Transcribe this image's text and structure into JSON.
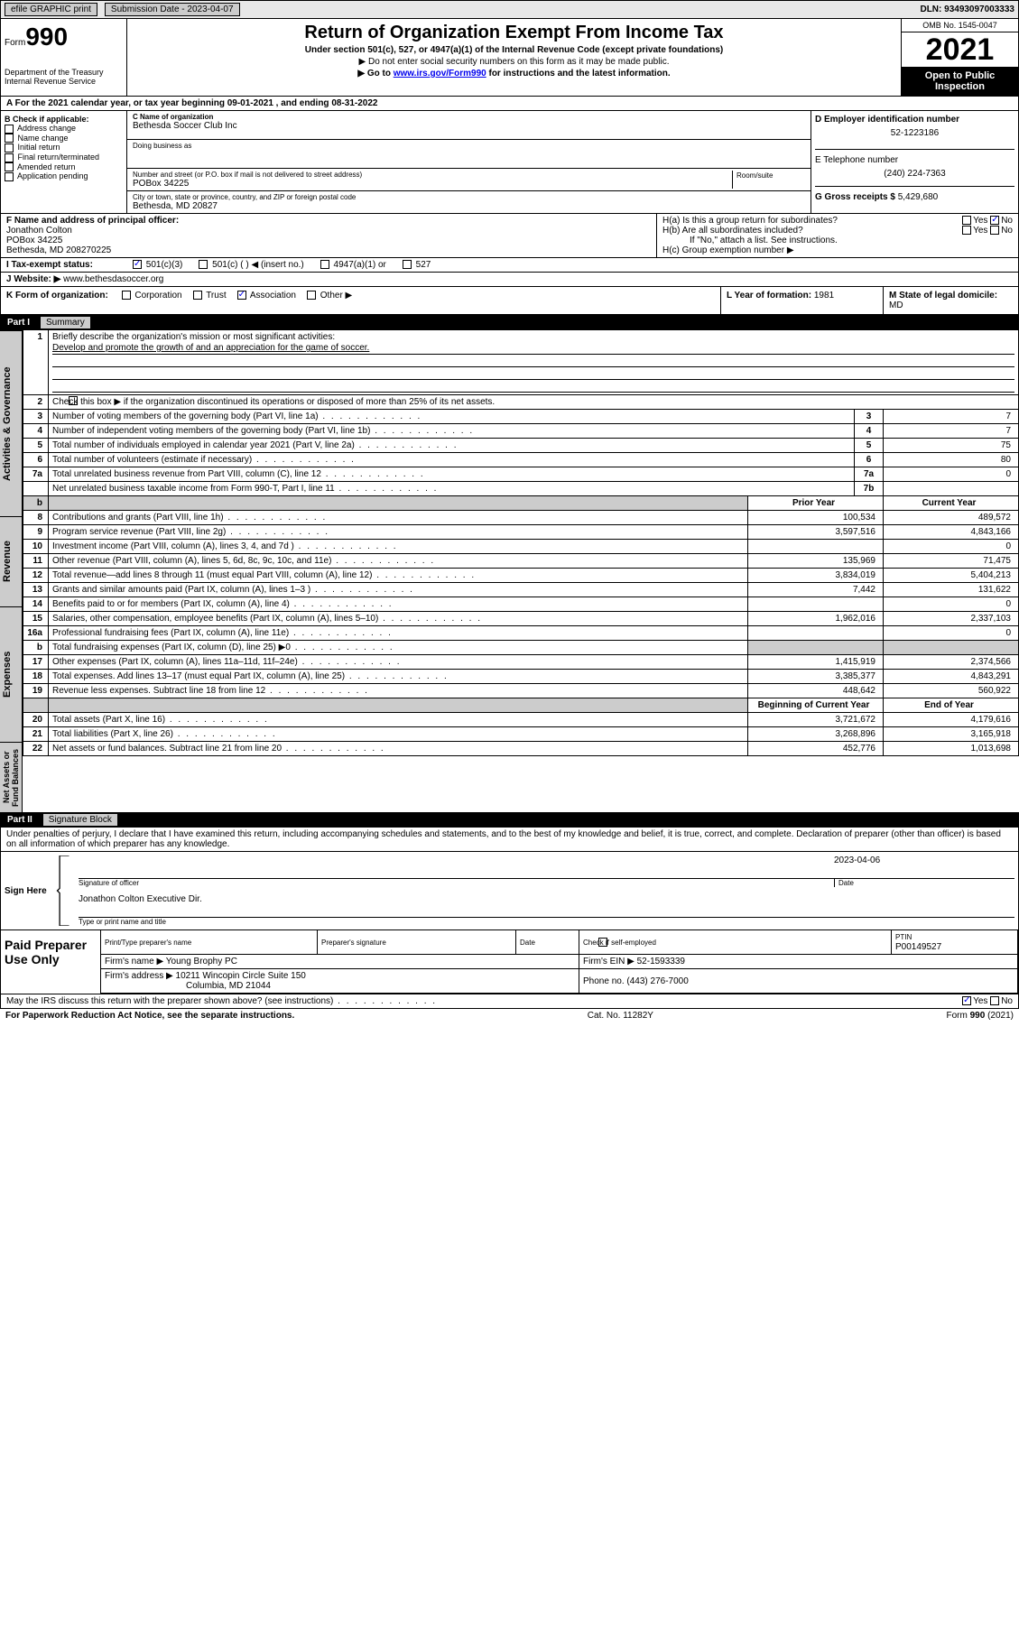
{
  "topBar": {
    "efile": "efile GRAPHIC print",
    "submissionLabel": "Submission Date - 2023-04-07",
    "dln": "DLN: 93493097003333"
  },
  "header": {
    "formPrefix": "Form",
    "formNum": "990",
    "dept": "Department of the Treasury\nInternal Revenue Service",
    "title": "Return of Organization Exempt From Income Tax",
    "sub1": "Under section 501(c), 527, or 4947(a)(1) of the Internal Revenue Code (except private foundations)",
    "sub2": "▶ Do not enter social security numbers on this form as it may be made public.",
    "sub3_prefix": "▶ Go to ",
    "sub3_link": "www.irs.gov/Form990",
    "sub3_suffix": " for instructions and the latest information.",
    "omb": "OMB No. 1545-0047",
    "year": "2021",
    "openPublic": "Open to Public Inspection"
  },
  "sectionA": {
    "text": "A For the 2021 calendar year, or tax year beginning 09-01-2021   , and ending 08-31-2022"
  },
  "sectionB": {
    "label": "B Check if applicable:",
    "items": [
      "Address change",
      "Name change",
      "Initial return",
      "Final return/terminated",
      "Amended return",
      "Application pending"
    ]
  },
  "sectionC": {
    "nameLabel": "C Name of organization",
    "name": "Bethesda Soccer Club Inc",
    "dbaLabel": "Doing business as",
    "dba": "",
    "addrLabel": "Number and street (or P.O. box if mail is not delivered to street address)",
    "roomLabel": "Room/suite",
    "addr": "POBox 34225",
    "cityLabel": "City or town, state or province, country, and ZIP or foreign postal code",
    "city": "Bethesda, MD  20827"
  },
  "sectionD": {
    "label": "D Employer identification number",
    "value": "52-1223186"
  },
  "sectionE": {
    "label": "E Telephone number",
    "value": "(240) 224-7363"
  },
  "sectionG": {
    "label": "G Gross receipts $",
    "value": "5,429,680"
  },
  "sectionF": {
    "label": "F Name and address of principal officer:",
    "name": "Jonathon Colton",
    "addr1": "POBox 34225",
    "addr2": "Bethesda, MD  208270225"
  },
  "sectionH": {
    "a": "H(a)  Is this a group return for subordinates?",
    "b": "H(b)  Are all subordinates included?",
    "bNote": "If \"No,\" attach a list. See instructions.",
    "c": "H(c)  Group exemption number ▶"
  },
  "sectionI": {
    "label": "I      Tax-exempt status:",
    "opts": [
      "501(c)(3)",
      "501(c) (  ) ◀ (insert no.)",
      "4947(a)(1) or",
      "527"
    ]
  },
  "sectionJ": {
    "label": "J    Website: ▶",
    "value": "www.bethesdasoccer.org"
  },
  "sectionK": {
    "label": "K Form of organization:",
    "opts": [
      "Corporation",
      "Trust",
      "Association",
      "Other ▶"
    ]
  },
  "sectionL": {
    "label": "L Year of formation:",
    "value": "1981"
  },
  "sectionM": {
    "label": "M State of legal domicile:",
    "value": "MD"
  },
  "partI": {
    "label": "Part I",
    "title": "Summary",
    "groups": {
      "gov": "Activities & Governance",
      "rev": "Revenue",
      "exp": "Expenses",
      "net": "Net Assets or Fund Balances"
    },
    "line1": "Briefly describe the organization's mission or most significant activities:",
    "mission": "Develop and promote the growth of and an appreciation for the game of soccer.",
    "line2": "Check this box ▶        if the organization discontinued its operations or disposed of more than 25% of its net assets.",
    "priorHdr": "Prior Year",
    "currHdr": "Current Year",
    "begHdr": "Beginning of Current Year",
    "endHdr": "End of Year",
    "rows": [
      {
        "n": "3",
        "d": "Number of voting members of the governing body (Part VI, line 1a)",
        "t": "3",
        "v": "7"
      },
      {
        "n": "4",
        "d": "Number of independent voting members of the governing body (Part VI, line 1b)",
        "t": "4",
        "v": "7"
      },
      {
        "n": "5",
        "d": "Total number of individuals employed in calendar year 2021 (Part V, line 2a)",
        "t": "5",
        "v": "75"
      },
      {
        "n": "6",
        "d": "Total number of volunteers (estimate if necessary)",
        "t": "6",
        "v": "80"
      },
      {
        "n": "7a",
        "d": "Total unrelated business revenue from Part VIII, column (C), line 12",
        "t": "7a",
        "v": "0"
      },
      {
        "n": "",
        "d": "Net unrelated business taxable income from Form 990-T, Part I, line 11",
        "t": "7b",
        "v": ""
      }
    ],
    "revRows": [
      {
        "n": "8",
        "d": "Contributions and grants (Part VIII, line 1h)",
        "p": "100,534",
        "c": "489,572"
      },
      {
        "n": "9",
        "d": "Program service revenue (Part VIII, line 2g)",
        "p": "3,597,516",
        "c": "4,843,166"
      },
      {
        "n": "10",
        "d": "Investment income (Part VIII, column (A), lines 3, 4, and 7d )",
        "p": "",
        "c": "0"
      },
      {
        "n": "11",
        "d": "Other revenue (Part VIII, column (A), lines 5, 6d, 8c, 9c, 10c, and 11e)",
        "p": "135,969",
        "c": "71,475"
      },
      {
        "n": "12",
        "d": "Total revenue—add lines 8 through 11 (must equal Part VIII, column (A), line 12)",
        "p": "3,834,019",
        "c": "5,404,213"
      }
    ],
    "expRows": [
      {
        "n": "13",
        "d": "Grants and similar amounts paid (Part IX, column (A), lines 1–3 )",
        "p": "7,442",
        "c": "131,622"
      },
      {
        "n": "14",
        "d": "Benefits paid to or for members (Part IX, column (A), line 4)",
        "p": "",
        "c": "0"
      },
      {
        "n": "15",
        "d": "Salaries, other compensation, employee benefits (Part IX, column (A), lines 5–10)",
        "p": "1,962,016",
        "c": "2,337,103"
      },
      {
        "n": "16a",
        "d": "Professional fundraising fees (Part IX, column (A), line 11e)",
        "p": "",
        "c": "0"
      },
      {
        "n": "b",
        "d": "Total fundraising expenses (Part IX, column (D), line 25) ▶0",
        "p": "shaded",
        "c": "shaded"
      },
      {
        "n": "17",
        "d": "Other expenses (Part IX, column (A), lines 11a–11d, 11f–24e)",
        "p": "1,415,919",
        "c": "2,374,566"
      },
      {
        "n": "18",
        "d": "Total expenses. Add lines 13–17 (must equal Part IX, column (A), line 25)",
        "p": "3,385,377",
        "c": "4,843,291"
      },
      {
        "n": "19",
        "d": "Revenue less expenses. Subtract line 18 from line 12",
        "p": "448,642",
        "c": "560,922"
      }
    ],
    "netRows": [
      {
        "n": "20",
        "d": "Total assets (Part X, line 16)",
        "p": "3,721,672",
        "c": "4,179,616"
      },
      {
        "n": "21",
        "d": "Total liabilities (Part X, line 26)",
        "p": "3,268,896",
        "c": "3,165,918"
      },
      {
        "n": "22",
        "d": "Net assets or fund balances. Subtract line 21 from line 20",
        "p": "452,776",
        "c": "1,013,698"
      }
    ]
  },
  "partII": {
    "label": "Part II",
    "title": "Signature Block",
    "perjury": "Under penalties of perjury, I declare that I have examined this return, including accompanying schedules and statements, and to the best of my knowledge and belief, it is true, correct, and complete. Declaration of preparer (other than officer) is based on all information of which preparer has any knowledge.",
    "signHere": "Sign Here",
    "sigOff": "Signature of officer",
    "date": "Date",
    "sigDate": "2023-04-06",
    "offName": "Jonathon Colton  Executive Dir.",
    "typeLabel": "Type or print name and title",
    "paidPrep": "Paid Preparer Use Only",
    "prepName": "Print/Type preparer's name",
    "prepSig": "Preparer's signature",
    "checkSelf": "Check        if self-employed",
    "ptin": "PTIN",
    "ptinVal": "P00149527",
    "firmLabel": "Firm's name    ▶",
    "firmName": "Young Brophy PC",
    "firmEinLabel": "Firm's EIN ▶",
    "firmEin": "52-1593339",
    "firmAddrLabel": "Firm's address ▶",
    "firmAddr1": "10211 Wincopin Circle Suite 150",
    "firmAddr2": "Columbia, MD  21044",
    "phoneLabel": "Phone no.",
    "phone": "(443) 276-7000",
    "discuss": "May the IRS discuss this return with the preparer shown above? (see instructions)"
  },
  "footer": {
    "pra": "For Paperwork Reduction Act Notice, see the separate instructions.",
    "cat": "Cat. No. 11282Y",
    "form": "Form 990 (2021)"
  },
  "yesNo": {
    "yes": "Yes",
    "no": "No"
  }
}
